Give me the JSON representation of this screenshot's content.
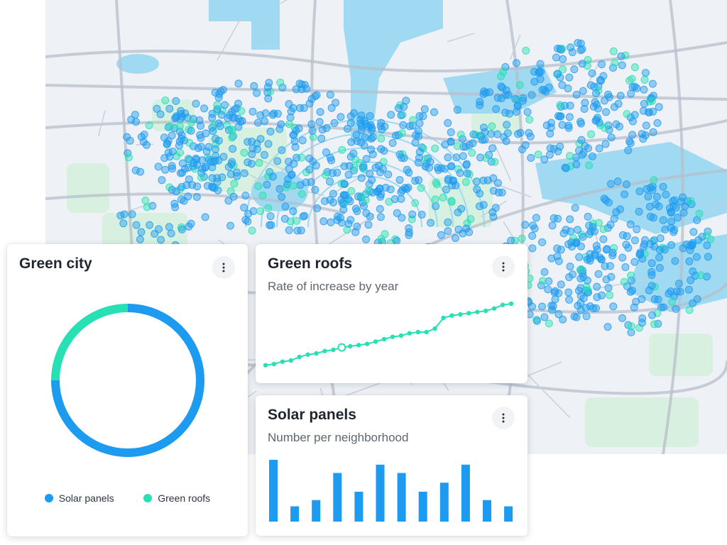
{
  "colors": {
    "solar": "#1d9bf0",
    "green": "#27e0b4",
    "water": "#9fd9f2",
    "park": "#d7f0df",
    "road": "#b7bfca"
  },
  "icons": {
    "menu": "more-vertical-icon"
  },
  "map": {
    "layers": [
      "Solar panels",
      "Green roofs"
    ]
  },
  "green_city": {
    "title": "Green city",
    "chart_data": {
      "type": "pie",
      "style": "donut",
      "slices": [
        {
          "name": "Solar panels",
          "value": 75,
          "color": "#1d9bf0"
        },
        {
          "name": "Green roofs",
          "value": 25,
          "color": "#27e0b4"
        }
      ]
    },
    "legend": [
      {
        "label": "Solar panels",
        "color": "#1d9bf0"
      },
      {
        "label": "Green roofs",
        "color": "#27e0b4"
      }
    ]
  },
  "green_roofs": {
    "title": "Green roofs",
    "subtitle": "Rate of increase by year",
    "chart_data": {
      "type": "line",
      "x": [
        1,
        2,
        3,
        4,
        5,
        6,
        7,
        8,
        9,
        10,
        11,
        12,
        13,
        14,
        15,
        16,
        17,
        18,
        19,
        20,
        21,
        22,
        23,
        24,
        25,
        26,
        27,
        28,
        29,
        30
      ],
      "y": [
        2,
        3,
        5,
        6,
        9,
        11,
        12,
        14,
        15,
        17,
        18,
        19,
        20,
        22,
        24,
        26,
        27,
        29,
        30,
        30,
        33,
        42,
        44,
        45,
        46,
        47,
        48,
        50,
        53,
        54
      ],
      "ylim": [
        0,
        60
      ],
      "highlight_index": 9,
      "color": "#27e0b4"
    }
  },
  "solar_panels": {
    "title": "Solar panels",
    "subtitle": "Number per neighborhood",
    "chart_data": {
      "type": "bar",
      "values": [
        89,
        22,
        31,
        70,
        43,
        82,
        70,
        43,
        56,
        82,
        31,
        22
      ],
      "ylim": [
        0,
        92
      ],
      "color": "#1d9bf0"
    }
  }
}
